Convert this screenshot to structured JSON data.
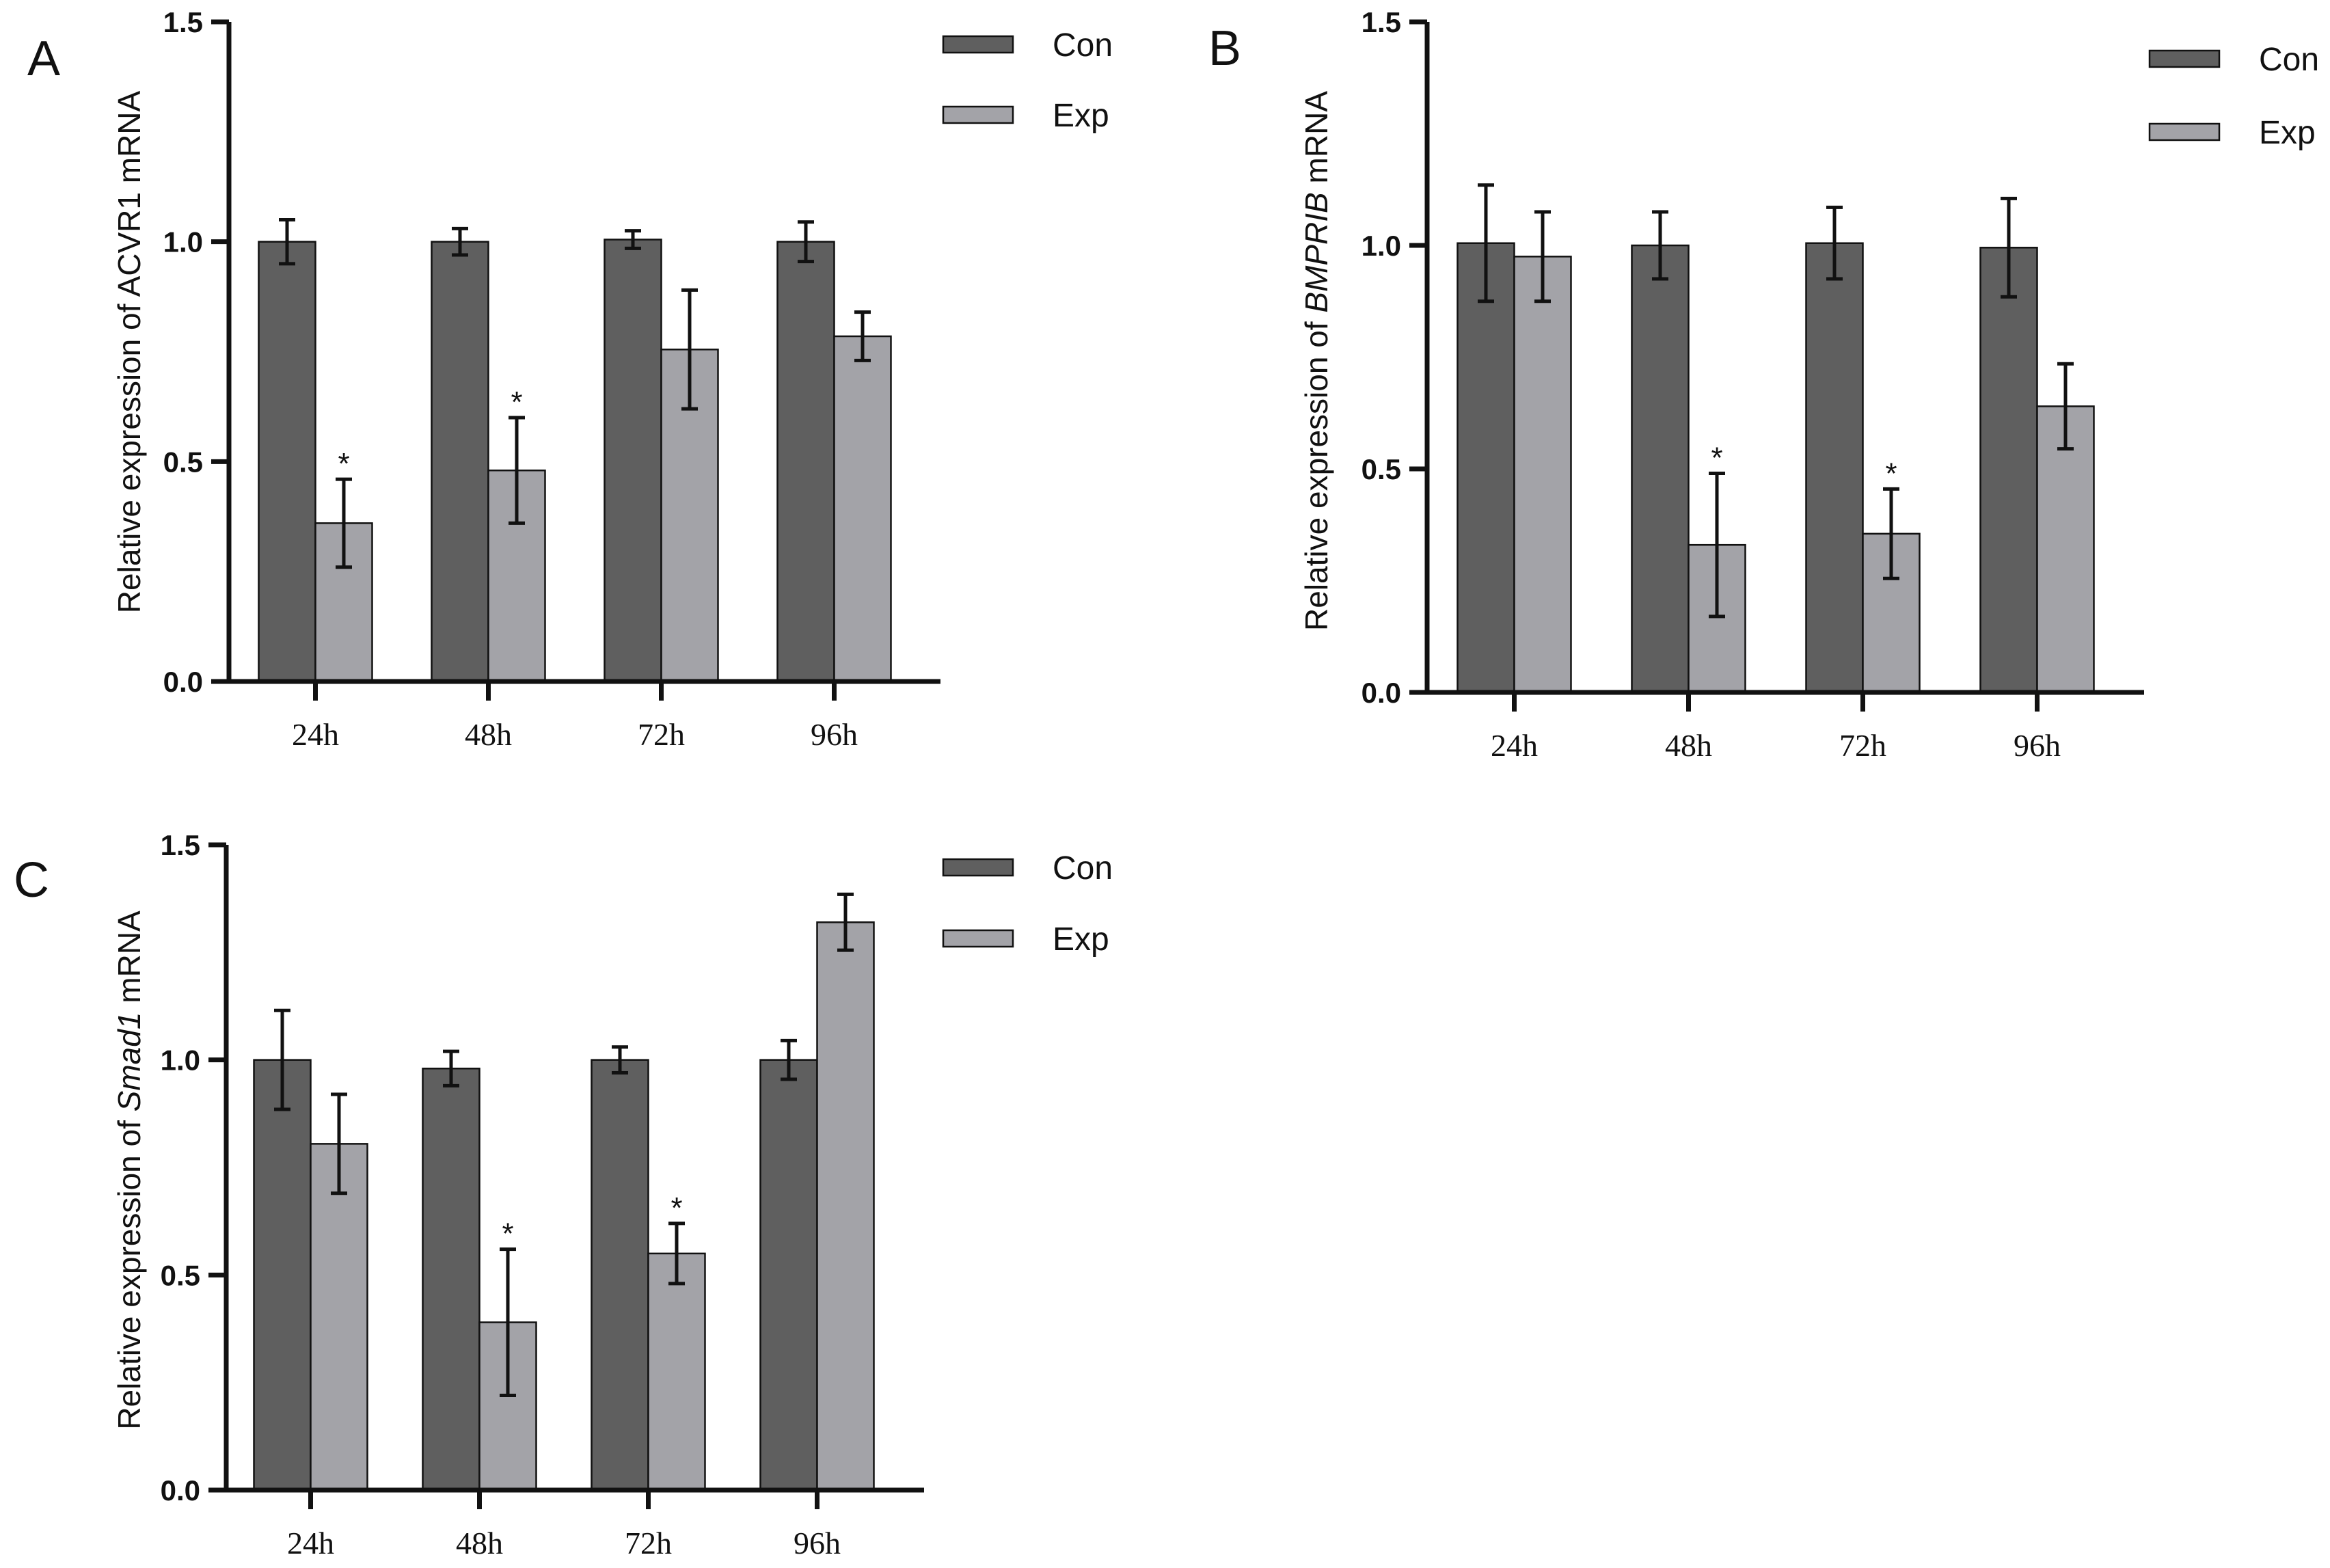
{
  "colors": {
    "con": "#5f5f5f",
    "exp": "#a3a3a8",
    "axis": "#111111"
  },
  "chart_data": [
    {
      "id": "A",
      "panel_label": "A",
      "type": "bar",
      "ylabel_parts": [
        {
          "text": "Relative  expression of ACVR1 mRNA",
          "italic": false
        }
      ],
      "categories": [
        "24h",
        "48h",
        "72h",
        "96h"
      ],
      "ylim": [
        0,
        1.5
      ],
      "yticks": [
        "0.0",
        "0.5",
        "1.0",
        "1.5"
      ],
      "legend": [
        "Con",
        "Exp"
      ],
      "legend_position": "top-right",
      "significance_marker": "*",
      "series": [
        {
          "name": "Con",
          "values": [
            1.0,
            1.0,
            1.005,
            1.0
          ],
          "errors": [
            0.05,
            0.03,
            0.02,
            0.045
          ],
          "significant": [
            false,
            false,
            false,
            false
          ]
        },
        {
          "name": "Exp",
          "values": [
            0.36,
            0.48,
            0.755,
            0.785
          ],
          "errors": [
            0.1,
            0.12,
            0.135,
            0.055
          ],
          "significant": [
            true,
            true,
            false,
            false
          ]
        }
      ]
    },
    {
      "id": "B",
      "panel_label": "B",
      "type": "bar",
      "ylabel_parts": [
        {
          "text": "Relative  expression of ",
          "italic": false
        },
        {
          "text": "BMPRIB",
          "italic": true
        },
        {
          "text": " mRNA",
          "italic": false
        }
      ],
      "categories": [
        "24h",
        "48h",
        "72h",
        "96h"
      ],
      "ylim": [
        0,
        1.5
      ],
      "yticks": [
        "0.0",
        "0.5",
        "1.0",
        "1.5"
      ],
      "legend": [
        "Con",
        "Exp"
      ],
      "legend_position": "top-right",
      "significance_marker": "*",
      "series": [
        {
          "name": "Con",
          "values": [
            1.005,
            1.0,
            1.005,
            0.995
          ],
          "errors": [
            0.13,
            0.075,
            0.08,
            0.11
          ],
          "significant": [
            false,
            false,
            false,
            false
          ]
        },
        {
          "name": "Exp",
          "values": [
            0.975,
            0.33,
            0.355,
            0.64
          ],
          "errors": [
            0.1,
            0.16,
            0.1,
            0.095
          ],
          "significant": [
            false,
            true,
            true,
            false
          ]
        }
      ]
    },
    {
      "id": "C",
      "panel_label": "C",
      "type": "bar",
      "ylabel_parts": [
        {
          "text": "Relative  expression of ",
          "italic": false
        },
        {
          "text": "Smad1",
          "italic": true
        },
        {
          "text": " mRNA",
          "italic": false
        }
      ],
      "categories": [
        "24h",
        "48h",
        "72h",
        "96h"
      ],
      "ylim": [
        0,
        1.5
      ],
      "yticks": [
        "0.0",
        "0.5",
        "1.0",
        "1.5"
      ],
      "legend": [
        "Con",
        "Exp"
      ],
      "legend_position": "top-right",
      "significance_marker": "*",
      "series": [
        {
          "name": "Con",
          "values": [
            1.0,
            0.98,
            1.0,
            1.0
          ],
          "errors": [
            0.115,
            0.04,
            0.03,
            0.045
          ],
          "significant": [
            false,
            false,
            false,
            false
          ]
        },
        {
          "name": "Exp",
          "values": [
            0.805,
            0.39,
            0.55,
            1.32
          ],
          "errors": [
            0.115,
            0.17,
            0.07,
            0.065
          ],
          "significant": [
            false,
            true,
            true,
            false
          ]
        }
      ]
    }
  ]
}
